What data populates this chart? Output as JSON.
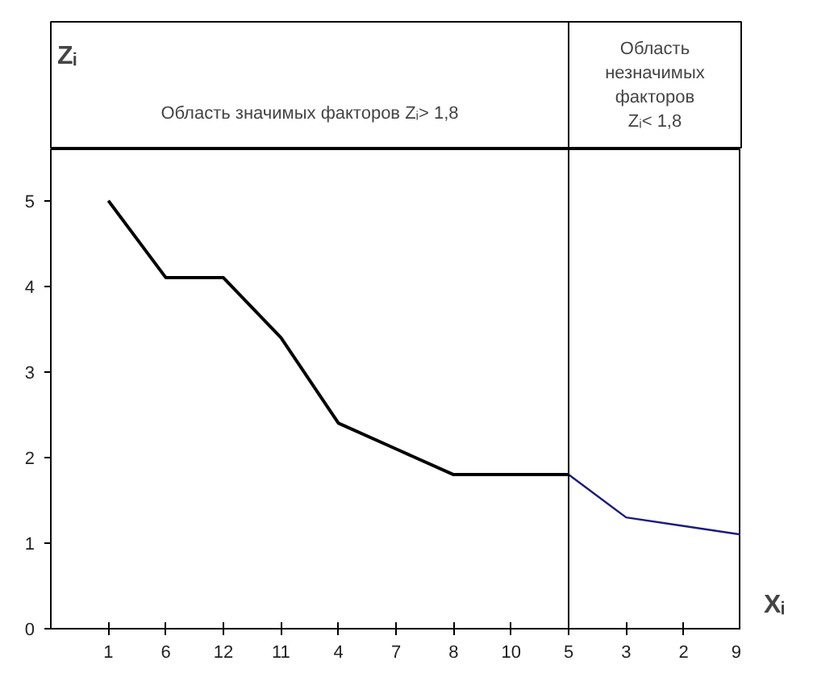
{
  "chart_data": {
    "type": "line",
    "categories": [
      "1",
      "6",
      "12",
      "11",
      "4",
      "7",
      "8",
      "10",
      "5",
      "3",
      "2",
      "9"
    ],
    "series": [
      {
        "color": "#000000",
        "values": [
          5.0,
          4.1,
          4.1,
          3.4,
          2.4,
          2.1,
          1.8,
          1.8,
          1.8,
          null,
          null,
          null
        ]
      },
      {
        "color": "#1a1a80",
        "values": [
          null,
          null,
          null,
          null,
          null,
          null,
          null,
          null,
          1.8,
          1.3,
          1.2,
          1.1
        ]
      }
    ],
    "ylim": [
      0,
      5.6
    ],
    "yticks": [
      0,
      1,
      2,
      3,
      4,
      5
    ],
    "ylabel": "Zᵢ",
    "xlabel": "Xᵢ",
    "ref_lines": [
      {
        "axis": "x",
        "value": "5"
      }
    ],
    "annotations": [
      "Область значимых факторов Zᵢ> 1,8",
      "Область незначимых факторов Zᵢ< 1,8"
    ],
    "grid": false,
    "marker": "none",
    "line_style": "solid"
  }
}
